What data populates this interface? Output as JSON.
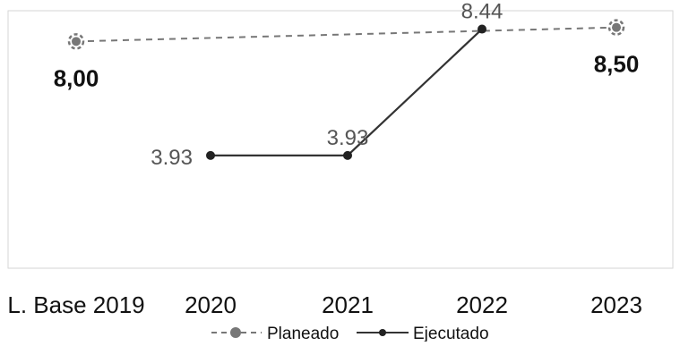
{
  "chart_data": {
    "type": "line",
    "categories": [
      "L. Base 2019",
      "2020",
      "2021",
      "2022",
      "2023"
    ],
    "series": [
      {
        "name": "Planeado",
        "style": "dashed",
        "color": "#777777",
        "points": [
          {
            "category": "L. Base 2019",
            "value": 8.0,
            "label": "8,00"
          },
          {
            "category": "2023",
            "value": 8.5,
            "label": "8,50"
          }
        ]
      },
      {
        "name": "Ejecutado",
        "style": "solid",
        "color": "#333333",
        "points": [
          {
            "category": "2020",
            "value": 3.93,
            "label": "3.93"
          },
          {
            "category": "2021",
            "value": 3.93,
            "label": "3.93"
          },
          {
            "category": "2022",
            "value": 8.44,
            "label": "8.44"
          }
        ]
      }
    ],
    "ylim": [
      0,
      9
    ],
    "grid": false,
    "legend_position": "bottom-center"
  }
}
